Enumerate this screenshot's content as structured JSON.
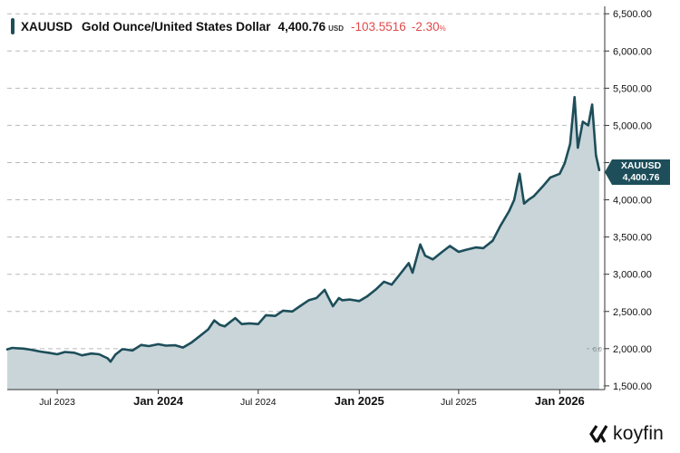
{
  "header": {
    "symbol": "XAUUSD",
    "name": "Gold Ounce/United States Dollar",
    "price": "4,400.76",
    "currency": "USD",
    "change": "-103.5516",
    "change_pct": "-2.30",
    "pct_sign": "%"
  },
  "price_tag": {
    "symbol": "XAUUSD",
    "value": "4,400.76"
  },
  "brand": {
    "name": "koyfin"
  },
  "colors": {
    "line": "#1d4e5a",
    "area": "#c9d5d9",
    "negative": "#e04a4a",
    "grid": "#b9b9b9"
  },
  "chart_data": {
    "type": "area",
    "series": [
      {
        "name": "XAUUSD",
        "x": [
          "2023-04-01",
          "2023-04-10",
          "2023-04-20",
          "2023-05-01",
          "2023-05-15",
          "2023-06-01",
          "2023-06-15",
          "2023-07-01",
          "2023-07-15",
          "2023-08-01",
          "2023-08-15",
          "2023-09-01",
          "2023-09-15",
          "2023-10-01",
          "2023-10-06",
          "2023-10-15",
          "2023-10-27",
          "2023-11-01",
          "2023-11-15",
          "2023-12-01",
          "2023-12-04",
          "2023-12-15",
          "2024-01-01",
          "2024-01-15",
          "2024-02-01",
          "2024-02-15",
          "2024-03-01",
          "2024-03-15",
          "2024-04-01",
          "2024-04-12",
          "2024-04-22",
          "2024-05-01",
          "2024-05-20",
          "2024-06-01",
          "2024-06-15",
          "2024-07-01",
          "2024-07-15",
          "2024-08-01",
          "2024-08-15",
          "2024-09-01",
          "2024-09-15",
          "2024-10-01",
          "2024-10-15",
          "2024-10-30",
          "2024-11-05",
          "2024-11-14",
          "2024-11-25",
          "2024-12-01",
          "2024-12-15",
          "2025-01-01",
          "2025-01-15",
          "2025-02-01",
          "2025-02-15",
          "2025-03-01",
          "2025-03-15",
          "2025-04-01",
          "2025-04-08",
          "2025-04-22",
          "2025-05-01",
          "2025-05-15",
          "2025-06-01",
          "2025-06-15",
          "2025-07-01",
          "2025-07-15",
          "2025-08-01",
          "2025-08-15",
          "2025-09-01",
          "2025-09-15",
          "2025-10-01",
          "2025-10-10",
          "2025-10-20",
          "2025-10-28",
          "2025-11-05",
          "2025-11-15",
          "2025-12-01",
          "2025-12-15",
          "2026-01-01",
          "2026-01-10",
          "2026-01-20",
          "2026-01-28",
          "2026-02-03",
          "2026-02-12",
          "2026-02-22",
          "2026-03-01",
          "2026-03-08",
          "2026-03-14"
        ],
        "values": [
          1990,
          2010,
          2005,
          2000,
          1985,
          1960,
          1945,
          1925,
          1955,
          1945,
          1910,
          1935,
          1925,
          1870,
          1825,
          1920,
          1990,
          1990,
          1975,
          2050,
          2045,
          2035,
          2060,
          2040,
          2045,
          2015,
          2080,
          2160,
          2260,
          2380,
          2320,
          2300,
          2410,
          2330,
          2340,
          2330,
          2450,
          2440,
          2510,
          2500,
          2570,
          2650,
          2680,
          2790,
          2700,
          2570,
          2680,
          2650,
          2660,
          2640,
          2700,
          2800,
          2900,
          2860,
          2990,
          3150,
          3020,
          3400,
          3250,
          3200,
          3300,
          3380,
          3300,
          3330,
          3360,
          3350,
          3450,
          3650,
          3850,
          4000,
          4350,
          3950,
          4000,
          4050,
          4180,
          4300,
          4350,
          4490,
          4750,
          5380,
          4700,
          5050,
          5000,
          5280,
          4600,
          4400
        ]
      }
    ],
    "x_ticks": [
      "Jul 2023",
      "Jan 2024",
      "Jul 2024",
      "Jan 2025",
      "Jul 2025",
      "Jan 2026"
    ],
    "x_tick_values": [
      "2023-07-01",
      "2024-01-01",
      "2024-07-01",
      "2025-01-01",
      "2025-07-01",
      "2026-01-01"
    ],
    "x_tick_major": [
      false,
      true,
      false,
      true,
      false,
      true
    ],
    "y_ticks": [
      "1,500.00",
      "2,000.00",
      "2,500.00",
      "3,000.00",
      "3,500.00",
      "4,000.00",
      "4,500.00",
      "5,000.00",
      "5,500.00",
      "6,000.00",
      "6,500.00"
    ],
    "y_tick_values": [
      1500,
      2000,
      2500,
      3000,
      3500,
      4000,
      4500,
      5000,
      5500,
      6000,
      6500
    ],
    "ylim": [
      1450,
      6600
    ],
    "xlim": [
      "2023-04-01",
      "2026-03-24"
    ],
    "y_axis_position": "right",
    "grid": "horizontal dashed",
    "legend": "none",
    "baseline_label": "0.0",
    "baseline_value": 2000
  }
}
